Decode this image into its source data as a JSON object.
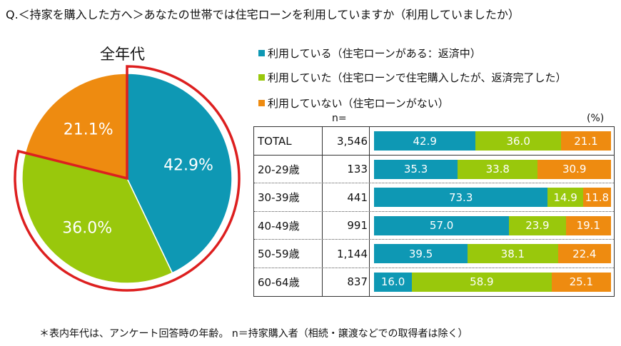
{
  "title": "Q.＜持家を購入した方へ＞あなたの世帯では住宅ローンを利用していますか（利用していましたか）",
  "footnote": "＊表内年代は、アンケート回答時の年齢。 n＝持家購入者（相続・譲渡などでの取得者は除く）",
  "colors": {
    "using": "#0e98b4",
    "used": "#99c80c",
    "not_used": "#ee8b10",
    "highlight": "#dd1f1f"
  },
  "chart_data": [
    {
      "type": "pie",
      "title": "全年代",
      "categories": [
        "利用している（住宅ローンがある：返済中）",
        "利用していた（住宅ローンで住宅購入したが、返済完了した）",
        "利用していない（住宅ローンがない）"
      ],
      "values": [
        42.9,
        36.0,
        21.1
      ],
      "labels": [
        "42.9%",
        "36.0%",
        "21.1%"
      ],
      "highlighted": [
        "利用している（住宅ローンがある：返済中）",
        "利用していた（住宅ローンで住宅購入したが、返済完了した）"
      ]
    },
    {
      "type": "bar",
      "orientation": "horizontal-stacked-100",
      "legend": [
        "利用している（住宅ローンがある：返済中）",
        "利用していた（住宅ローンで住宅購入したが、返済完了した）",
        "利用していない（住宅ローンがない）"
      ],
      "legend_placement": "top",
      "n_header": "n=",
      "unit": "(%)",
      "categories": [
        "TOTAL",
        "20-29歳",
        "30-39歳",
        "40-49歳",
        "50-59歳",
        "60-64歳"
      ],
      "n": [
        "3,546",
        "133",
        "441",
        "991",
        "1,144",
        "837"
      ],
      "series": [
        {
          "name": "利用している（住宅ローンがある：返済中）",
          "values": [
            42.9,
            35.3,
            73.3,
            57.0,
            39.5,
            16.0
          ]
        },
        {
          "name": "利用していた（住宅ローンで住宅購入したが、返済完了した）",
          "values": [
            36.0,
            33.8,
            14.9,
            23.9,
            38.1,
            58.9
          ]
        },
        {
          "name": "利用していない（住宅ローンがない）",
          "values": [
            21.1,
            30.9,
            11.8,
            19.1,
            22.4,
            25.1
          ]
        }
      ]
    }
  ]
}
